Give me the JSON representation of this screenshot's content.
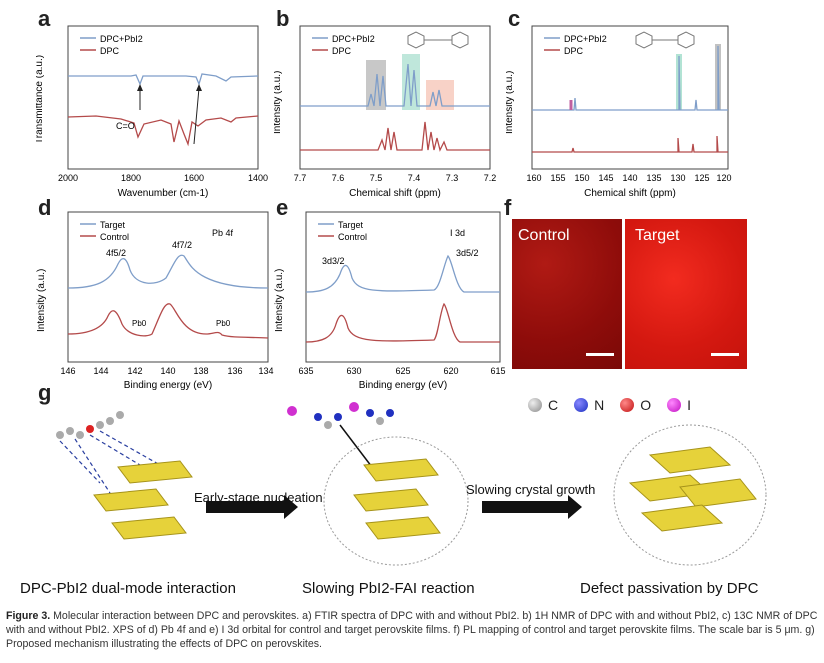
{
  "panels": {
    "a": {
      "label": "a",
      "legend": [
        "DPC+PbI2",
        "DPC"
      ],
      "xlabel": "Wavenumber (cm-1)",
      "ylabel": "Transmittance (a.u.)",
      "xticks": [
        "2000",
        "1800",
        "1600",
        "1400"
      ],
      "annot_co": "C=O"
    },
    "b": {
      "label": "b",
      "legend": [
        "DPC+PbI2",
        "DPC"
      ],
      "xlabel": "Chemical shift (ppm)",
      "ylabel": "Intensity (a.u.)",
      "xticks": [
        "7.7",
        "7.6",
        "7.5",
        "7.4",
        "7.3",
        "7.2"
      ]
    },
    "c": {
      "label": "c",
      "legend": [
        "DPC+PbI2",
        "DPC"
      ],
      "xlabel": "Chemical shift (ppm)",
      "ylabel": "Intensity (a.u.)",
      "xticks": [
        "160",
        "155",
        "150",
        "145",
        "140",
        "135",
        "130",
        "125",
        "120"
      ]
    },
    "d": {
      "label": "d",
      "legend": [
        "Target",
        "Control"
      ],
      "title": "Pb 4f",
      "xlabel": "Binding energy (eV)",
      "ylabel": "Intensity (a.u.)",
      "xticks": [
        "146",
        "144",
        "142",
        "140",
        "138",
        "136",
        "134"
      ],
      "peak1": "4f5/2",
      "peak2": "4f7/2",
      "pb0": "Pb0"
    },
    "e": {
      "label": "e",
      "legend": [
        "Target",
        "Control"
      ],
      "title": "I 3d",
      "xlabel": "Binding energy (eV)",
      "ylabel": "Intensity (a.u.)",
      "xticks": [
        "635",
        "630",
        "625",
        "620",
        "615"
      ],
      "peak1": "3d3/2",
      "peak2": "3d5/2"
    },
    "f": {
      "label": "f",
      "control": "Control",
      "target": "Target"
    },
    "g": {
      "label": "g",
      "legend": [
        "C",
        "N",
        "O",
        "I"
      ],
      "arrow1": "Early-stage nucleation",
      "arrow2": "Slowing crystal growth",
      "cap1": "DPC-PbI2 dual-mode interaction",
      "cap2": "Slowing PbI2-FAI reaction",
      "cap3": "Defect passivation by DPC"
    }
  },
  "caption": {
    "head": "Figure 3.",
    "text": "Molecular interaction between DPC and perovskites. a) FTIR spectra of DPC with and without PbI2. b) 1H NMR of DPC with and without PbI2, c) 13C NMR of DPC with and without PbI2. XPS of d) Pb 4f and e) I 3d orbital for control and target perovskite films. f) PL mapping of control and target perovskite films. The scale bar is 5 μm. g) Proposed mechanism illustrating the effects of DPC on perovskites."
  },
  "colors": {
    "blue": "#7f9ec9",
    "red": "#b44a4a",
    "yellow": "#e6d23a"
  }
}
